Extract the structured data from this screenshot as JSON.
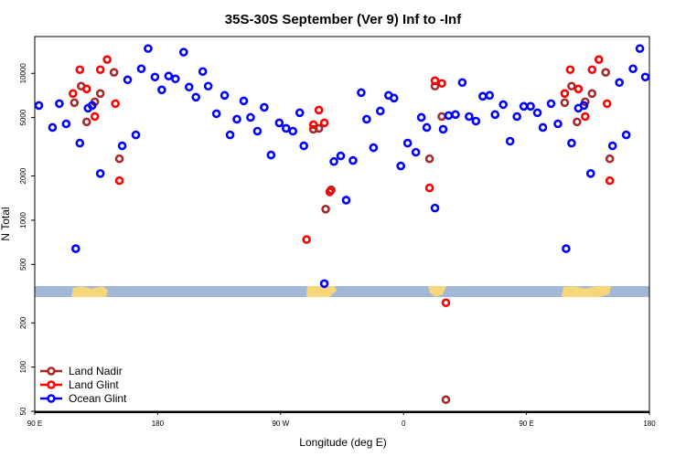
{
  "chart_data": {
    "type": "scatter",
    "title": "35S-30S September (Ver 9)   Inf to -Inf",
    "x_label": "Longitude (deg E)",
    "y_label": "N Total",
    "xlim": [
      90,
      540
    ],
    "xticks": [
      {
        "value": 90,
        "label": "90 E"
      },
      180,
      {
        "value": 270,
        "label": "90 W"
      },
      {
        "value": 360,
        "label": "0"
      },
      {
        "value": 450,
        "label": "90 E"
      },
      {
        "value": 540,
        "label": "180"
      }
    ],
    "ylim": [
      50,
      17800
    ],
    "y_scale": "log",
    "yticks": [
      50,
      100,
      200,
      500,
      1000,
      2000,
      5000,
      10000
    ],
    "legend": "lower left",
    "series": [
      {
        "name": "Land Nadir",
        "color": "#a52a2a",
        "x": [
          119,
          124,
          128,
          134,
          138,
          148,
          152,
          294,
          298,
          303,
          307,
          379,
          383,
          388,
          391,
          478,
          483,
          487,
          493,
          498,
          508,
          511
        ],
        "values": [
          6310,
          8180,
          4670,
          6400,
          7290,
          10150,
          2620,
          4160,
          4220,
          1190,
          1610,
          2620,
          8180,
          5080,
          60,
          6310,
          8180,
          4670,
          6400,
          7290,
          10150,
          2620
        ]
      },
      {
        "name": "Land Glint",
        "color": "#ff0000",
        "x": [
          118,
          123,
          128,
          134,
          138,
          143,
          149,
          152,
          289,
          294,
          298,
          302,
          306,
          379,
          383,
          388,
          391,
          478,
          482,
          488,
          493,
          498,
          503,
          509,
          511
        ],
        "values": [
          7290,
          10590,
          7830,
          5080,
          10590,
          12410,
          6220,
          1860,
          739,
          4470,
          5620,
          4600,
          1560,
          1660,
          8910,
          8540,
          274,
          7290,
          10590,
          7830,
          5080,
          10590,
          12410,
          6220,
          1860
        ]
      },
      {
        "name": "Ocean Glint",
        "color": "#0000ff",
        "x": [
          93,
          103,
          108,
          113,
          120,
          123,
          129,
          132,
          138,
          154,
          158,
          164,
          168,
          173,
          178,
          183,
          188,
          193,
          199,
          203,
          208,
          213,
          217,
          223,
          229,
          233,
          238,
          243,
          248,
          253,
          258,
          263,
          269,
          274,
          279,
          284,
          287,
          302,
          309,
          314,
          318,
          323,
          329,
          333,
          338,
          343,
          349,
          353,
          358,
          363,
          369,
          373,
          377,
          383,
          389,
          393,
          398,
          403,
          408,
          413,
          418,
          423,
          427,
          433,
          438,
          443,
          448,
          453,
          458,
          462,
          468,
          473,
          479,
          483,
          488,
          492,
          497,
          513,
          518,
          523,
          528,
          533,
          537
        ],
        "values": [
          6040,
          4280,
          6220,
          4530,
          640,
          3350,
          5790,
          6040,
          2080,
          3210,
          9040,
          3810,
          10740,
          14750,
          9440,
          7720,
          9580,
          9170,
          13930,
          8060,
          6880,
          10290,
          8180,
          5310,
          7080,
          3810,
          4870,
          6490,
          5010,
          4040,
          5870,
          2780,
          4600,
          4220,
          4040,
          5390,
          3210,
          370,
          2510,
          2740,
          1370,
          2550,
          7390,
          4870,
          3120,
          5540,
          7080,
          6780,
          2340,
          3350,
          2900,
          5010,
          4280,
          1210,
          4160,
          5160,
          5240,
          8660,
          5080,
          4730,
          6980,
          7080,
          5240,
          6130,
          3450,
          5080,
          5960,
          5960,
          5390,
          4280,
          6220,
          4530,
          640,
          3350,
          5790,
          6040,
          2080,
          3210,
          8660,
          3810,
          10740,
          14750,
          9440
        ]
      }
    ]
  }
}
